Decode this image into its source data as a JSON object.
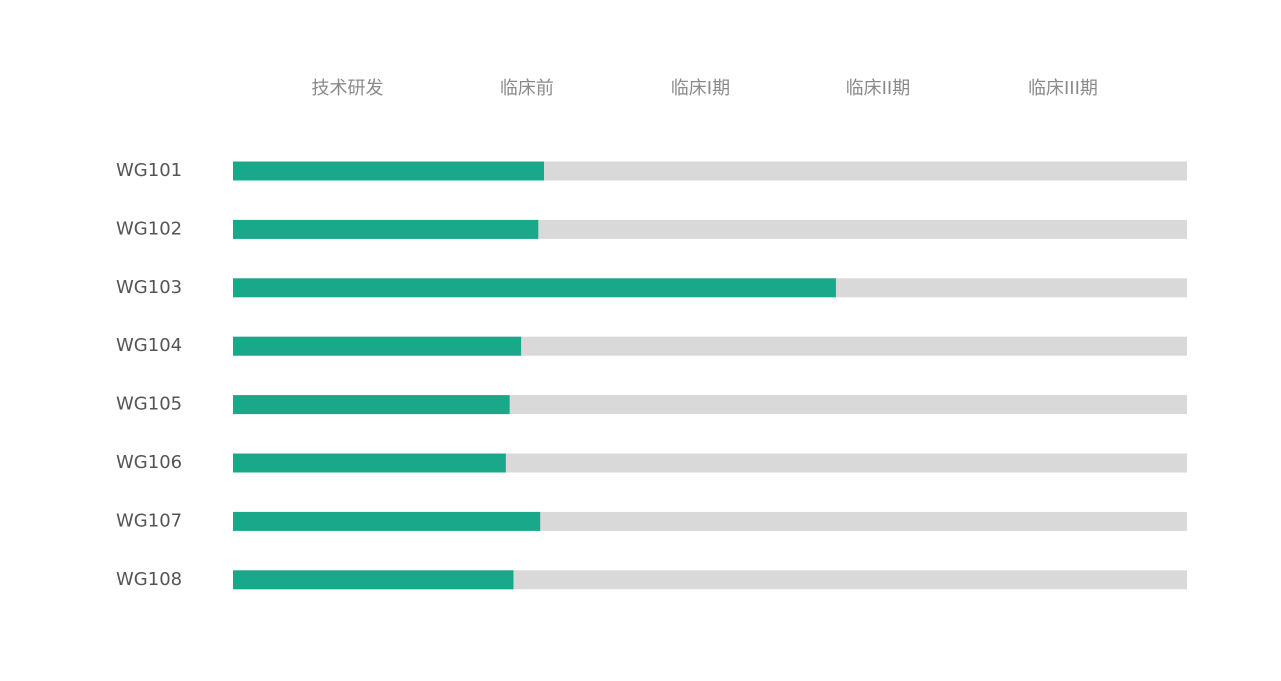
{
  "chart_data": {
    "type": "bar",
    "orientation": "horizontal",
    "categories": [
      "WG101",
      "WG102",
      "WG103",
      "WG104",
      "WG105",
      "WG106",
      "WG107",
      "WG108"
    ],
    "values": [
      1.63,
      1.6,
      3.16,
      1.51,
      1.45,
      1.43,
      1.61,
      1.47
    ],
    "color": "#1aa88a",
    "track_color": "#d9d9d9",
    "xlim": [
      0,
      5
    ],
    "xticks": [
      {
        "value": 0.6,
        "label": "技术研发"
      },
      {
        "value": 1.54,
        "label": "临床前"
      },
      {
        "value": 2.45,
        "label": "临床I期"
      },
      {
        "value": 3.38,
        "label": "临床II期"
      },
      {
        "value": 4.35,
        "label": "临床III期"
      }
    ]
  }
}
